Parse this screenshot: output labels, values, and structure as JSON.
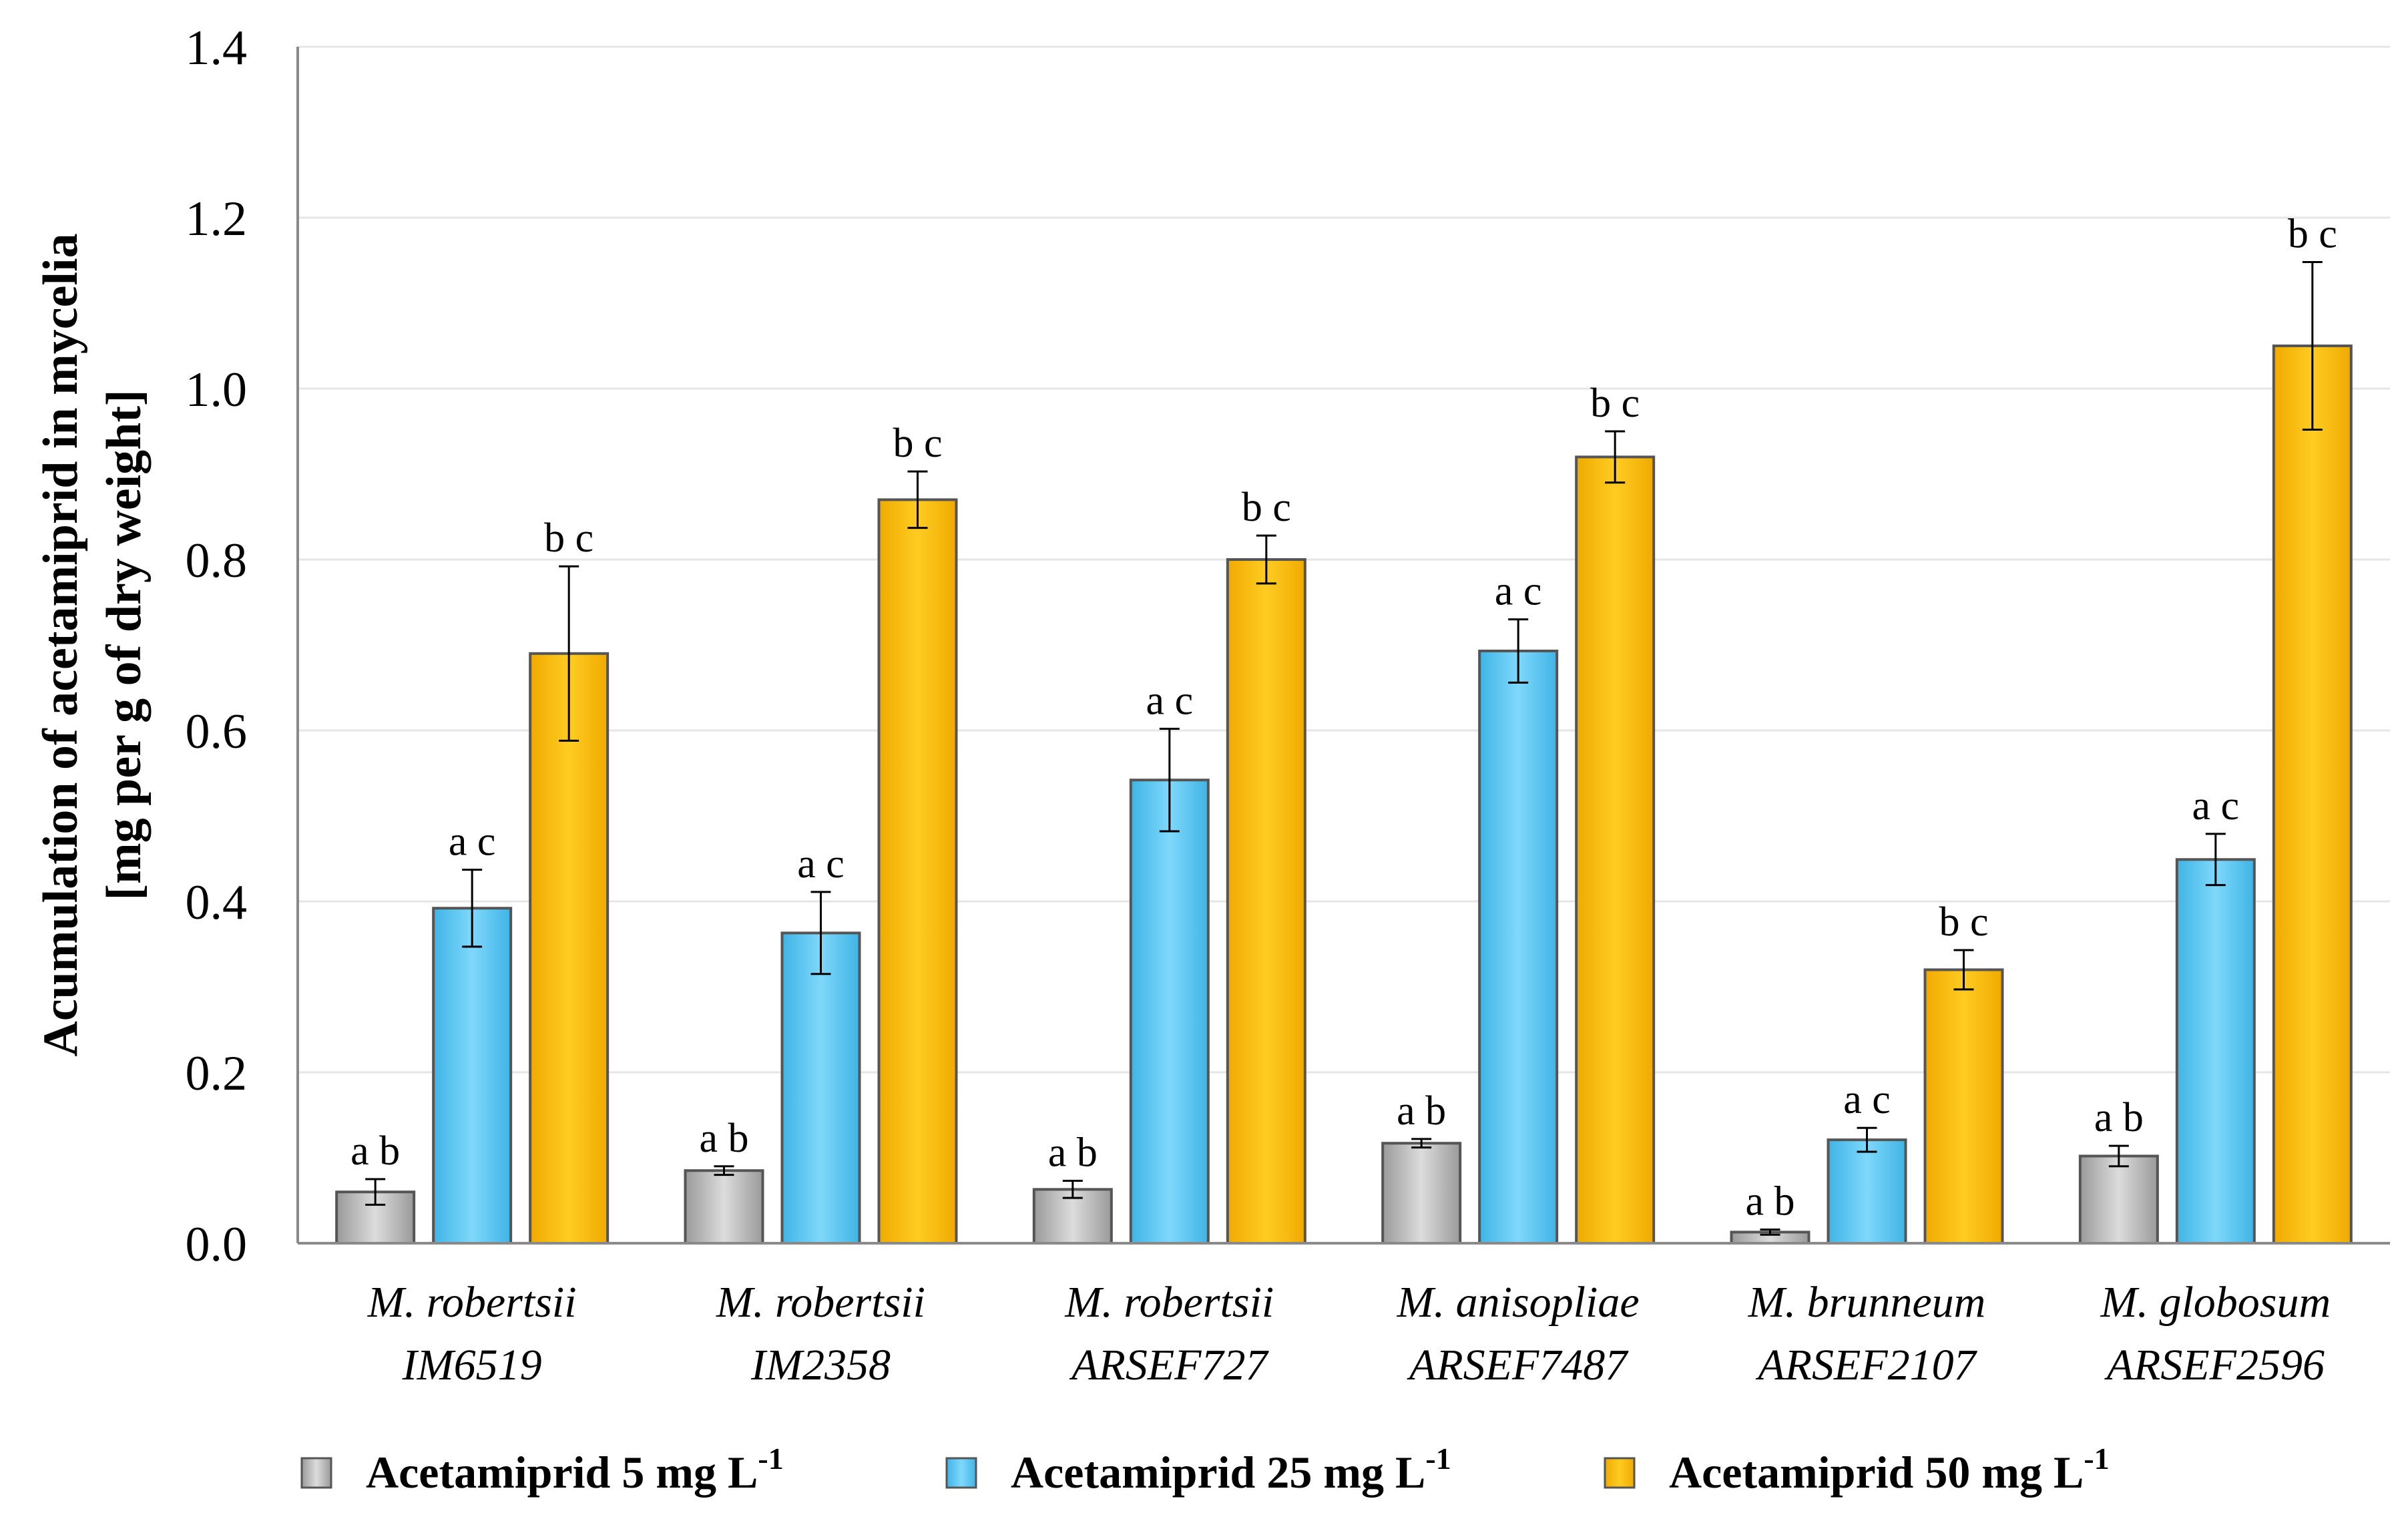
{
  "chart_data": {
    "type": "bar",
    "title": "",
    "ylabel_lines": [
      "Acumulation of acetamiprid in mycelia",
      "[mg per g of dry weight]"
    ],
    "ylim": [
      0,
      1.4
    ],
    "yticks": [
      "0.0",
      "0.2",
      "0.4",
      "0.6",
      "0.8",
      "1.0",
      "1.2",
      "1.4"
    ],
    "ytick_values": [
      0,
      0.2,
      0.4,
      0.6,
      0.8,
      1.0,
      1.2,
      1.4
    ],
    "categories": [
      {
        "line1": "M. robertsii",
        "line2": "IM6519"
      },
      {
        "line1": "M. robertsii",
        "line2": "IM2358"
      },
      {
        "line1": "M. robertsii",
        "line2": "ARSEF727"
      },
      {
        "line1": "M. anisopliae",
        "line2": "ARSEF7487"
      },
      {
        "line1": "M. brunneum",
        "line2": "ARSEF2107"
      },
      {
        "line1": "M. globosum",
        "line2": "ARSEF2596"
      }
    ],
    "series": [
      {
        "name": "Acetamiprid 5 mg L",
        "superscript": "-1",
        "color": "#c8c8c8",
        "values": [
          0.06,
          0.085,
          0.063,
          0.117,
          0.013,
          0.102
        ],
        "errors": [
          0.015,
          0.005,
          0.01,
          0.005,
          0.003,
          0.012
        ],
        "labels": [
          "a b",
          "a b",
          "a b",
          "a b",
          "a b",
          "a b"
        ]
      },
      {
        "name": "Acetamiprid 25 mg L",
        "superscript": "-1",
        "color": "#66ccf5",
        "values": [
          0.392,
          0.363,
          0.542,
          0.693,
          0.121,
          0.449
        ],
        "errors": [
          0.045,
          0.048,
          0.06,
          0.037,
          0.014,
          0.03
        ],
        "labels": [
          "a c",
          "a c",
          "a c",
          "a c",
          "a c",
          "a c"
        ]
      },
      {
        "name": "Acetamiprid 50 mg L",
        "superscript": "-1",
        "color": "#ffc20e",
        "values": [
          0.69,
          0.87,
          0.8,
          0.92,
          0.32,
          1.05
        ],
        "errors": [
          0.102,
          0.033,
          0.028,
          0.03,
          0.023,
          0.098
        ],
        "labels": [
          "b c",
          "b c",
          "b c",
          "b c",
          "b c",
          "b c"
        ]
      }
    ],
    "grid": true,
    "legend_position": "bottom"
  }
}
